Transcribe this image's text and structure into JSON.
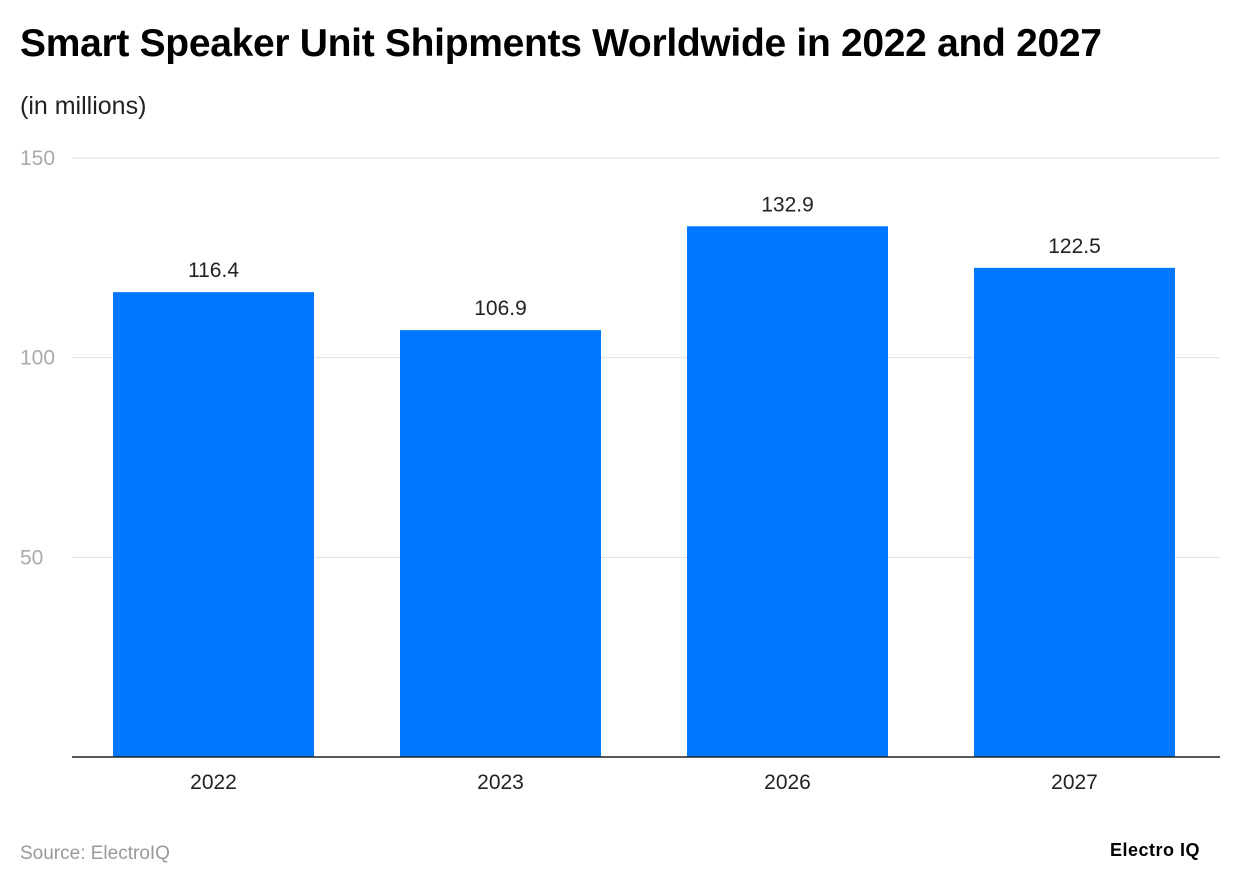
{
  "chart_data": {
    "type": "bar",
    "title": "Smart Speaker Unit Shipments Worldwide in 2022 and 2027",
    "subtitle": "(in millions)",
    "categories": [
      "2022",
      "2023",
      "2026",
      "2027"
    ],
    "values": [
      116.4,
      106.9,
      132.9,
      122.5
    ],
    "value_labels": [
      "116.4",
      "106.9",
      "132.9",
      "122.5"
    ],
    "ylim": [
      0,
      150
    ],
    "yticks": [
      50,
      100,
      150
    ],
    "grid": true,
    "bar_color": "#0077FF",
    "source": "Source: ElectroIQ",
    "logo": "Electro IQ"
  }
}
